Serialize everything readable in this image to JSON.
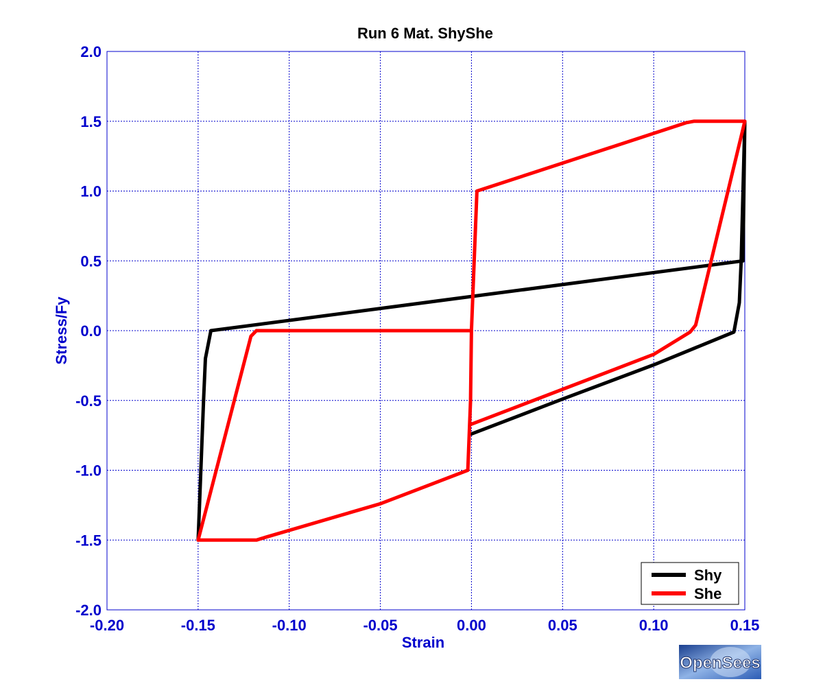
{
  "chart_data": {
    "type": "line",
    "title": "Run 6   Mat. ShyShe",
    "xlabel": "Strain",
    "ylabel": "Stress/Fy",
    "xlim": [
      -0.2,
      0.15
    ],
    "ylim": [
      -2.0,
      2.0
    ],
    "grid": true,
    "legend_position": "bottom-right",
    "x_ticks": [
      "-0.20",
      "-0.15",
      "-0.10",
      "-0.05",
      "0.00",
      "0.05",
      "0.10",
      "0.15"
    ],
    "y_ticks": [
      "-2.0",
      "-1.5",
      "-1.0",
      "-0.5",
      "0.0",
      "0.5",
      "1.0",
      "1.5",
      "2.0"
    ],
    "series": [
      {
        "name": "Shy",
        "color": "#000000",
        "points": [
          [
            0.0,
            -0.74
          ],
          [
            0.05,
            -0.49
          ],
          [
            0.1,
            -0.245
          ],
          [
            0.144,
            -0.01
          ],
          [
            0.147,
            0.2
          ],
          [
            0.148,
            0.5
          ],
          [
            0.15,
            1.5
          ],
          [
            0.149,
            0.5
          ],
          [
            -0.143,
            0.0
          ],
          [
            -0.146,
            -0.2
          ],
          [
            -0.147,
            -0.5
          ],
          [
            -0.15,
            -1.5
          ]
        ]
      },
      {
        "name": "She",
        "color": "#ff0000",
        "points": [
          [
            0.0,
            -0.67
          ],
          [
            0.05,
            -0.42
          ],
          [
            0.1,
            -0.17
          ],
          [
            0.12,
            -0.01
          ],
          [
            0.123,
            0.04
          ],
          [
            0.15,
            1.5
          ],
          [
            0.122,
            1.5
          ],
          [
            0.118,
            1.49
          ],
          [
            0.05,
            1.2
          ],
          [
            0.003,
            1.0
          ],
          [
            0.0,
            0.0
          ],
          [
            -0.118,
            0.0
          ],
          [
            -0.121,
            -0.04
          ],
          [
            -0.15,
            -1.5
          ],
          [
            -0.118,
            -1.5
          ],
          [
            -0.113,
            -1.48
          ],
          [
            -0.05,
            -1.24
          ],
          [
            -0.002,
            -1.0
          ],
          [
            -0.0005,
            -0.5
          ],
          [
            0.0,
            0.0
          ]
        ]
      }
    ]
  },
  "logo": {
    "text": "OpenSees"
  }
}
